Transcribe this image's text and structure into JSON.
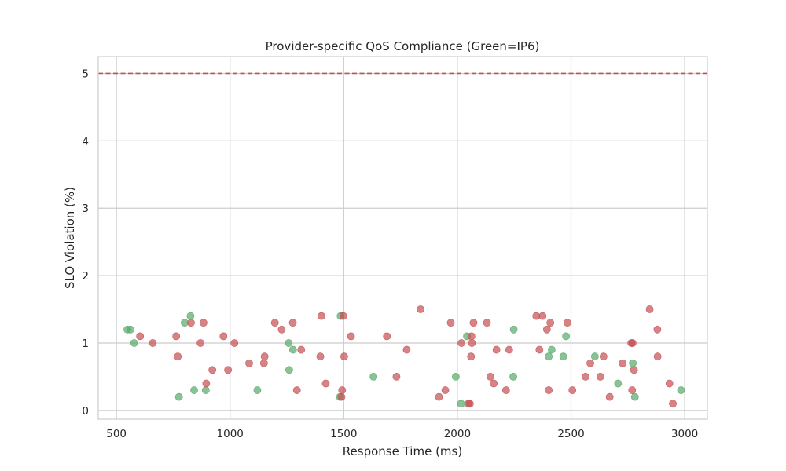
{
  "chart_data": {
    "type": "scatter",
    "title": "Provider-specific QoS Compliance (Green=IP6)",
    "xlabel": "Response Time (ms)",
    "ylabel": "SLO Violation (%)",
    "xlim": [
      420,
      3100
    ],
    "ylim": [
      -0.13,
      5.25
    ],
    "xticks": [
      500,
      1000,
      1500,
      2000,
      2500,
      3000
    ],
    "yticks": [
      0,
      1,
      2,
      3,
      4,
      5
    ],
    "grid": true,
    "threshold_line": {
      "y": 5,
      "color": "#c44e52",
      "style": "dashed"
    },
    "colors": {
      "green": "#55a868",
      "red": "#c44e52"
    },
    "series": [
      {
        "color": "#55a868",
        "points": [
          [
            548,
            1.2
          ],
          [
            562,
            1.2
          ],
          [
            578,
            1.0
          ],
          [
            775,
            0.2
          ],
          [
            800,
            1.3
          ],
          [
            826,
            1.4
          ],
          [
            842,
            0.3
          ],
          [
            893,
            0.3
          ],
          [
            1120,
            0.3
          ],
          [
            1258,
            1.0
          ],
          [
            1260,
            0.6
          ],
          [
            1277,
            0.9
          ],
          [
            1483,
            0.2
          ],
          [
            1486,
            1.4
          ],
          [
            1631,
            0.5
          ],
          [
            1993,
            0.5
          ],
          [
            2016,
            0.1
          ],
          [
            2042,
            1.1
          ],
          [
            2248,
            1.2
          ],
          [
            2246,
            0.5
          ],
          [
            2402,
            0.8
          ],
          [
            2415,
            0.9
          ],
          [
            2466,
            0.8
          ],
          [
            2478,
            1.1
          ],
          [
            2605,
            0.8
          ],
          [
            2707,
            0.4
          ],
          [
            2772,
            0.7
          ],
          [
            2781,
            0.2
          ],
          [
            2984,
            0.3
          ]
        ]
      },
      {
        "color": "#c44e52",
        "points": [
          [
            604,
            1.1
          ],
          [
            660,
            1.0
          ],
          [
            763,
            1.1
          ],
          [
            770,
            0.8
          ],
          [
            828,
            1.3
          ],
          [
            870,
            1.0
          ],
          [
            883,
            1.3
          ],
          [
            895,
            0.4
          ],
          [
            922,
            0.6
          ],
          [
            971,
            1.1
          ],
          [
            991,
            0.6
          ],
          [
            1019,
            1.0
          ],
          [
            1084,
            0.7
          ],
          [
            1149,
            0.7
          ],
          [
            1152,
            0.8
          ],
          [
            1197,
            1.3
          ],
          [
            1227,
            1.2
          ],
          [
            1276,
            1.3
          ],
          [
            1294,
            0.3
          ],
          [
            1313,
            0.9
          ],
          [
            1397,
            0.8
          ],
          [
            1402,
            1.4
          ],
          [
            1421,
            0.4
          ],
          [
            1490,
            0.2
          ],
          [
            1493,
            0.3
          ],
          [
            1498,
            1.4
          ],
          [
            1502,
            0.8
          ],
          [
            1532,
            1.1
          ],
          [
            1690,
            1.1
          ],
          [
            1732,
            0.5
          ],
          [
            1777,
            0.9
          ],
          [
            1838,
            1.5
          ],
          [
            1919,
            0.2
          ],
          [
            1947,
            0.3
          ],
          [
            1971,
            1.3
          ],
          [
            2018,
            1.0
          ],
          [
            2048,
            0.1
          ],
          [
            2055,
            0.1
          ],
          [
            2060,
            0.8
          ],
          [
            2062,
            1.1
          ],
          [
            2064,
            1.0
          ],
          [
            2071,
            1.3
          ],
          [
            2130,
            1.3
          ],
          [
            2145,
            0.5
          ],
          [
            2160,
            0.4
          ],
          [
            2172,
            0.9
          ],
          [
            2214,
            0.3
          ],
          [
            2228,
            0.9
          ],
          [
            2347,
            1.4
          ],
          [
            2361,
            0.9
          ],
          [
            2375,
            1.4
          ],
          [
            2394,
            1.2
          ],
          [
            2402,
            0.3
          ],
          [
            2409,
            1.3
          ],
          [
            2484,
            1.3
          ],
          [
            2506,
            0.3
          ],
          [
            2564,
            0.5
          ],
          [
            2585,
            0.7
          ],
          [
            2629,
            0.5
          ],
          [
            2643,
            0.8
          ],
          [
            2670,
            0.2
          ],
          [
            2727,
            0.7
          ],
          [
            2765,
            1.0
          ],
          [
            2771,
            1.0
          ],
          [
            2769,
            0.3
          ],
          [
            2777,
            0.6
          ],
          [
            2846,
            1.5
          ],
          [
            2880,
            1.2
          ],
          [
            2881,
            0.8
          ],
          [
            2933,
            0.4
          ],
          [
            2948,
            0.1
          ]
        ]
      }
    ]
  }
}
